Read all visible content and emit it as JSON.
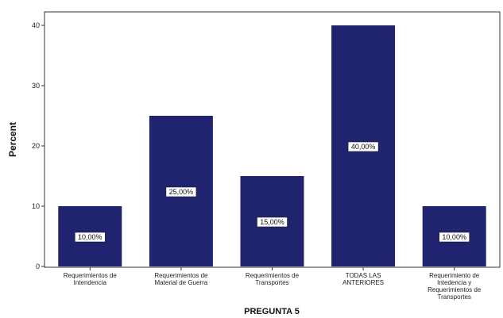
{
  "chart_data": {
    "type": "bar",
    "title": "",
    "xlabel": "PREGUNTA 5",
    "ylabel": "Percent",
    "ylim": [
      0,
      42
    ],
    "yticks": [
      0,
      10,
      20,
      30,
      40
    ],
    "grid": false,
    "categories": [
      [
        "Requerimientos de",
        "Intendencia"
      ],
      [
        "Requerimientos de",
        "Material de Guerra"
      ],
      [
        "Requerimientos de",
        "Transportes"
      ],
      [
        "TODAS LAS",
        "ANTERIORES"
      ],
      [
        "Requerimiento de",
        "Intedencia y",
        "Requerimientos de",
        "Transportes"
      ]
    ],
    "values": [
      10,
      25,
      15,
      40,
      10
    ],
    "data_labels": [
      "10,00%",
      "25,00%",
      "15,00%",
      "40,00%",
      "10,00%"
    ],
    "bar_color": "#1f2370"
  }
}
